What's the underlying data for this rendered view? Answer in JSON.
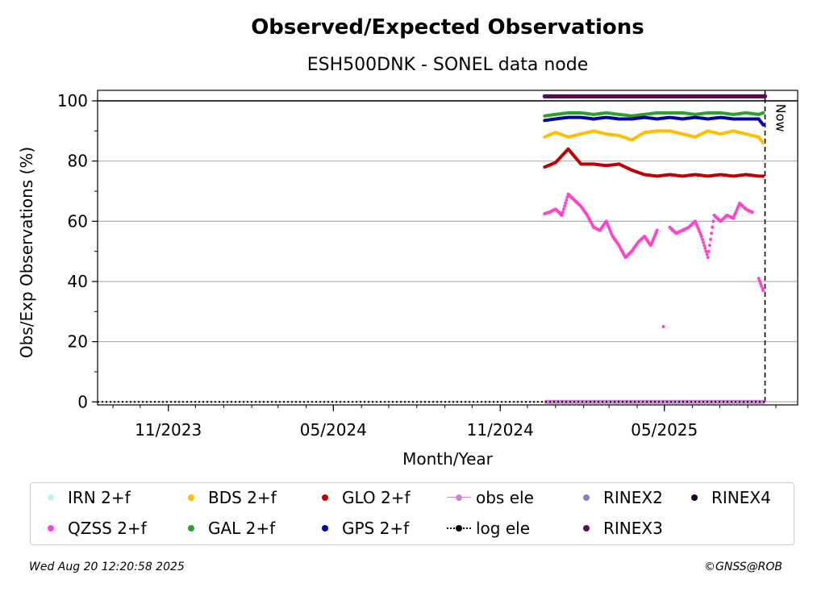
{
  "chart_data": {
    "type": "scatter",
    "title": "Observed/Expected Observations",
    "subtitle": "ESH500DNK - SONEL data node",
    "xlabel": "Month/Year",
    "ylabel": "Obs/Exp Observations (%)",
    "ylim": [
      -1,
      103.5
    ],
    "yticks": [
      "0",
      "20",
      "40",
      "60",
      "80",
      "100"
    ],
    "xlim": [
      "2023-08-15",
      "2025-09-25"
    ],
    "xticks": [
      {
        "label": "11/2023",
        "date": "2023-11-01"
      },
      {
        "label": "05/2024",
        "date": "2024-05-01"
      },
      {
        "label": "11/2024",
        "date": "2024-11-01"
      },
      {
        "label": "05/2025",
        "date": "2025-05-01"
      }
    ],
    "grid": "horizontal",
    "reference_line_y": 100,
    "now_marker": {
      "date": "2025-08-20",
      "label": "Now"
    },
    "legend_placement": "below",
    "series": [
      {
        "name": "IRN 2+f",
        "color": "#bff2f2",
        "marker": "dot",
        "points": []
      },
      {
        "name": "QZSS 2+f",
        "color": "#ff44cc",
        "marker": "dot",
        "points": [
          [
            "2024-12-20",
            62.5
          ],
          [
            "2024-12-25",
            63
          ],
          [
            "2025-01-01",
            64
          ],
          [
            "2025-01-08",
            62
          ],
          [
            "2025-01-15",
            69
          ],
          [
            "2025-01-22",
            67
          ],
          [
            "2025-01-29",
            65
          ],
          [
            "2025-02-05",
            62
          ],
          [
            "2025-02-12",
            58
          ],
          [
            "2025-02-19",
            57
          ],
          [
            "2025-02-26",
            60
          ],
          [
            "2025-03-05",
            55
          ],
          [
            "2025-03-12",
            52
          ],
          [
            "2025-03-19",
            48
          ],
          [
            "2025-03-26",
            50
          ],
          [
            "2025-04-02",
            53
          ],
          [
            "2025-04-09",
            55
          ],
          [
            "2025-04-16",
            52
          ],
          [
            "2025-04-23",
            57
          ],
          [
            "2025-04-30",
            25
          ],
          [
            "2025-05-07",
            58
          ],
          [
            "2025-05-14",
            56
          ],
          [
            "2025-05-21",
            57
          ],
          [
            "2025-05-28",
            58
          ],
          [
            "2025-06-04",
            60
          ],
          [
            "2025-06-11",
            55
          ],
          [
            "2025-06-18",
            48
          ],
          [
            "2025-06-25",
            62
          ],
          [
            "2025-07-02",
            60
          ],
          [
            "2025-07-09",
            62
          ],
          [
            "2025-07-16",
            61
          ],
          [
            "2025-07-23",
            66
          ],
          [
            "2025-07-30",
            64
          ],
          [
            "2025-08-06",
            63
          ],
          [
            "2025-08-13",
            41
          ],
          [
            "2025-08-18",
            37
          ]
        ]
      },
      {
        "name": "BDS 2+f",
        "color": "#ffbf00",
        "marker": "dot",
        "points": [
          [
            "2024-12-20",
            88
          ],
          [
            "2025-01-01",
            89.5
          ],
          [
            "2025-01-15",
            88
          ],
          [
            "2025-01-29",
            89
          ],
          [
            "2025-02-12",
            90
          ],
          [
            "2025-02-26",
            89
          ],
          [
            "2025-03-12",
            88.5
          ],
          [
            "2025-03-26",
            87
          ],
          [
            "2025-04-09",
            89.5
          ],
          [
            "2025-04-23",
            90
          ],
          [
            "2025-05-07",
            90
          ],
          [
            "2025-05-21",
            89
          ],
          [
            "2025-06-04",
            88
          ],
          [
            "2025-06-18",
            90
          ],
          [
            "2025-07-02",
            89
          ],
          [
            "2025-07-16",
            90
          ],
          [
            "2025-07-30",
            89
          ],
          [
            "2025-08-13",
            88
          ],
          [
            "2025-08-18",
            86
          ]
        ]
      },
      {
        "name": "GLO 2+f",
        "color": "#c00000",
        "marker": "dot",
        "points": [
          [
            "2024-12-20",
            78
          ],
          [
            "2025-01-01",
            79.5
          ],
          [
            "2025-01-15",
            84
          ],
          [
            "2025-01-29",
            79
          ],
          [
            "2025-02-12",
            79
          ],
          [
            "2025-02-26",
            78.5
          ],
          [
            "2025-03-12",
            79
          ],
          [
            "2025-03-26",
            77
          ],
          [
            "2025-04-09",
            75.5
          ],
          [
            "2025-04-23",
            75
          ],
          [
            "2025-05-07",
            75.5
          ],
          [
            "2025-05-21",
            75
          ],
          [
            "2025-06-04",
            75.5
          ],
          [
            "2025-06-18",
            75
          ],
          [
            "2025-07-02",
            75.5
          ],
          [
            "2025-07-16",
            75
          ],
          [
            "2025-07-30",
            75.5
          ],
          [
            "2025-08-13",
            75
          ],
          [
            "2025-08-18",
            75
          ]
        ]
      },
      {
        "name": "obs ele",
        "color": "#cc88cc",
        "marker": "line",
        "points": [
          [
            "2024-12-20",
            0
          ],
          [
            "2025-08-20",
            0
          ]
        ]
      },
      {
        "name": "RINEX2",
        "color": "#8080c0",
        "marker": "dot",
        "points": []
      },
      {
        "name": "RINEX4",
        "color": "#200020",
        "marker": "dot",
        "points": []
      },
      {
        "name": "GAL 2+f",
        "color": "#2ca02c",
        "marker": "dot",
        "points": [
          [
            "2024-12-20",
            95
          ],
          [
            "2025-01-01",
            95.5
          ],
          [
            "2025-01-15",
            96
          ],
          [
            "2025-01-29",
            96
          ],
          [
            "2025-02-12",
            95.5
          ],
          [
            "2025-02-26",
            96
          ],
          [
            "2025-03-12",
            95.5
          ],
          [
            "2025-03-26",
            95
          ],
          [
            "2025-04-09",
            95.5
          ],
          [
            "2025-04-23",
            96
          ],
          [
            "2025-05-07",
            96
          ],
          [
            "2025-05-21",
            96
          ],
          [
            "2025-06-04",
            95.5
          ],
          [
            "2025-06-18",
            96
          ],
          [
            "2025-07-02",
            96
          ],
          [
            "2025-07-16",
            95.5
          ],
          [
            "2025-07-30",
            96
          ],
          [
            "2025-08-13",
            95.5
          ],
          [
            "2025-08-18",
            96
          ]
        ]
      },
      {
        "name": "GPS 2+f",
        "color": "#0000a0",
        "marker": "dot",
        "points": [
          [
            "2024-12-20",
            93.5
          ],
          [
            "2025-01-01",
            94
          ],
          [
            "2025-01-15",
            94.5
          ],
          [
            "2025-01-29",
            94.5
          ],
          [
            "2025-02-12",
            94
          ],
          [
            "2025-02-26",
            94.5
          ],
          [
            "2025-03-12",
            94
          ],
          [
            "2025-03-26",
            94
          ],
          [
            "2025-04-09",
            94.5
          ],
          [
            "2025-04-23",
            94
          ],
          [
            "2025-05-07",
            94.5
          ],
          [
            "2025-05-21",
            94
          ],
          [
            "2025-06-04",
            94.5
          ],
          [
            "2025-06-18",
            94
          ],
          [
            "2025-07-02",
            94.5
          ],
          [
            "2025-07-16",
            94
          ],
          [
            "2025-07-30",
            94
          ],
          [
            "2025-08-13",
            94
          ],
          [
            "2025-08-18",
            92
          ]
        ]
      },
      {
        "name": "log ele",
        "color": "#000000",
        "marker": "dotted-line",
        "points": [
          [
            "2023-08-15",
            0
          ],
          [
            "2025-08-20",
            0
          ]
        ]
      },
      {
        "name": "RINEX3",
        "color": "#5c0a5c",
        "marker": "dot",
        "points": [
          [
            "2024-12-20",
            101.5
          ],
          [
            "2025-08-20",
            101.5
          ]
        ]
      }
    ]
  },
  "footer": {
    "timestamp": "Wed Aug 20 12:20:58 2025",
    "credit": "©GNSS@ROB"
  }
}
